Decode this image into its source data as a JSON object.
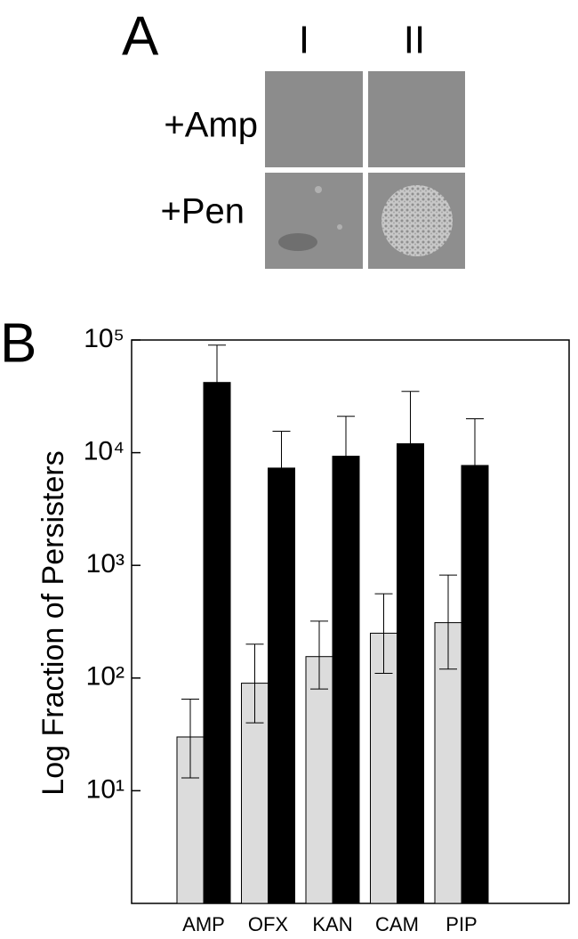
{
  "panel_a": {
    "label": "A",
    "columns": [
      "I",
      "II"
    ],
    "rows": [
      "+Amp",
      "+Pen"
    ]
  },
  "chart_data": {
    "type": "bar",
    "panel_label": "B",
    "y_label": "Log Fraction of Persisters",
    "log_scale": true,
    "grid": false,
    "categories": [
      "AMP",
      "OFX",
      "KAN",
      "CAM",
      "PIP"
    ],
    "series": [
      {
        "color": "#dcdcdc",
        "values": [
          30,
          90,
          155,
          250,
          310
        ],
        "err_low": [
          13,
          40,
          80,
          110,
          120
        ],
        "err_high": [
          65,
          200,
          320,
          560,
          820
        ]
      },
      {
        "color": "#000000",
        "values": [
          42000,
          7300,
          9300,
          12000,
          7700
        ],
        "err_high": [
          90000,
          15500,
          21000,
          35000,
          20000
        ]
      }
    ],
    "ylim": [
      1,
      100000
    ],
    "yticks": [
      {
        "value": 10,
        "label": "10¹"
      },
      {
        "value": 100,
        "label": "10²"
      },
      {
        "value": 1000,
        "label": "10³"
      },
      {
        "value": 10000,
        "label": "10⁴"
      },
      {
        "value": 100000,
        "label": "10⁵"
      }
    ]
  }
}
